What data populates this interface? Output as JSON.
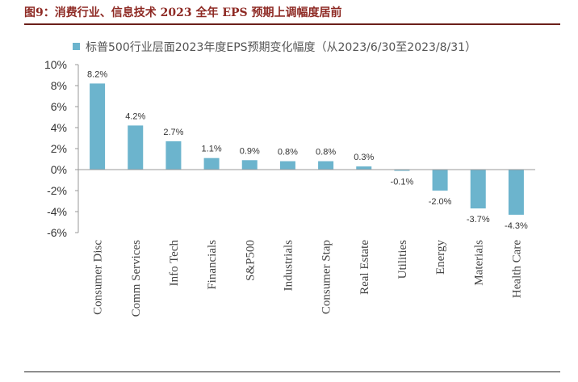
{
  "figure": {
    "title": "图9：消费行业、信息技术 2023 全年 EPS 预期上调幅度居前"
  },
  "chart_data": {
    "type": "bar",
    "legend_position": "top-left",
    "grid": false,
    "bar_color": "#6cb4cd",
    "ylim": [
      -6,
      10
    ],
    "yticks": [
      -6,
      -4,
      -2,
      0,
      2,
      4,
      6,
      8,
      10
    ],
    "y_unit": "%",
    "categories": [
      "Consumer Disc",
      "Comm Services",
      "Info Tech",
      "Financials",
      "S&P500",
      "Industrials",
      "Consumer Stap",
      "Real Estate",
      "Utilities",
      "Energy",
      "Materials",
      "Health Care"
    ],
    "series": [
      {
        "name": "标普500行业层面2023年度EPS预期变化幅度（从2023/6/30至2023/8/31）",
        "values": [
          8.2,
          4.2,
          2.7,
          1.1,
          0.9,
          0.8,
          0.8,
          0.3,
          -0.1,
          -2.0,
          -3.7,
          -4.3
        ],
        "labels": [
          "8.2%",
          "4.2%",
          "2.7%",
          "1.1%",
          "0.9%",
          "0.8%",
          "0.8%",
          "0.3%",
          "-0.1%",
          "-2.0%",
          "-3.7%",
          "-4.3%"
        ]
      }
    ]
  }
}
